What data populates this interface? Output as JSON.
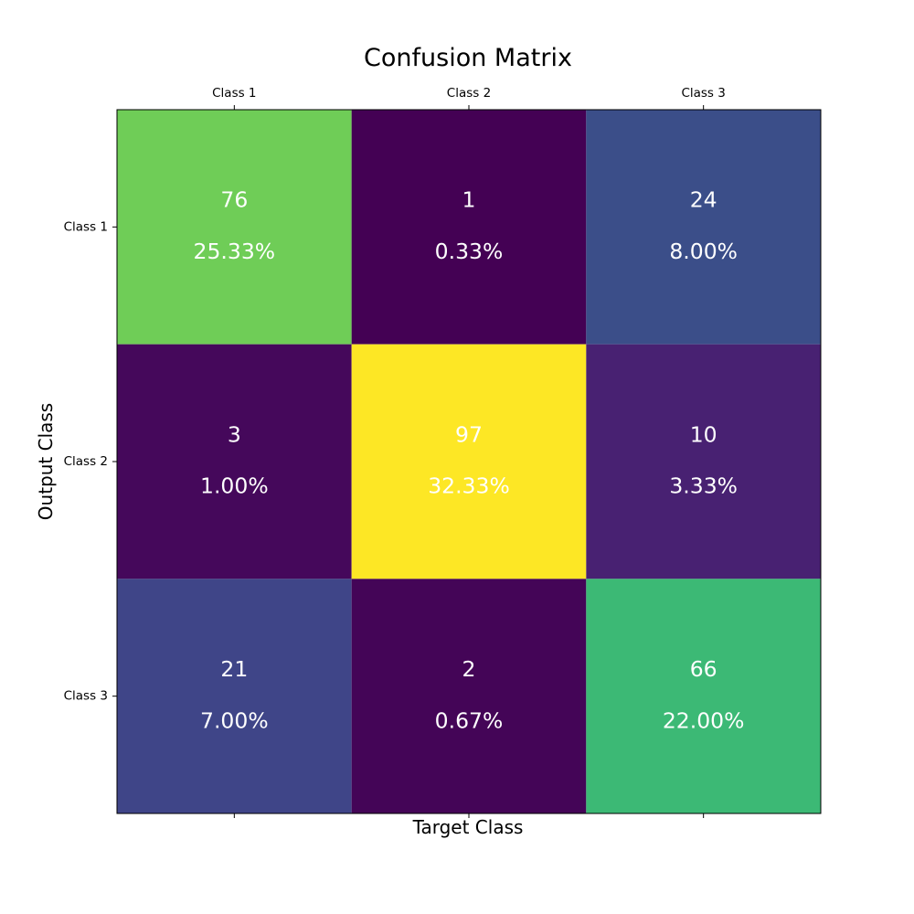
{
  "chart_data": {
    "type": "heatmap",
    "title": "Confusion Matrix",
    "xlabel": "Target Class",
    "ylabel": "Output Class",
    "x_categories": [
      "Class 1",
      "Class 2",
      "Class 3"
    ],
    "y_categories": [
      "Class 1",
      "Class 2",
      "Class 3"
    ],
    "x_tick_labels_position": "top",
    "counts": [
      [
        76,
        1,
        24
      ],
      [
        3,
        97,
        10
      ],
      [
        21,
        2,
        66
      ]
    ],
    "percentages": [
      [
        "25.33%",
        "0.33%",
        "8.00%"
      ],
      [
        "1.00%",
        "32.33%",
        "3.33%"
      ],
      [
        "7.00%",
        "0.67%",
        "22.00%"
      ]
    ],
    "colormap": "viridis",
    "cell_text_color": "#ffffff",
    "grid": false
  }
}
